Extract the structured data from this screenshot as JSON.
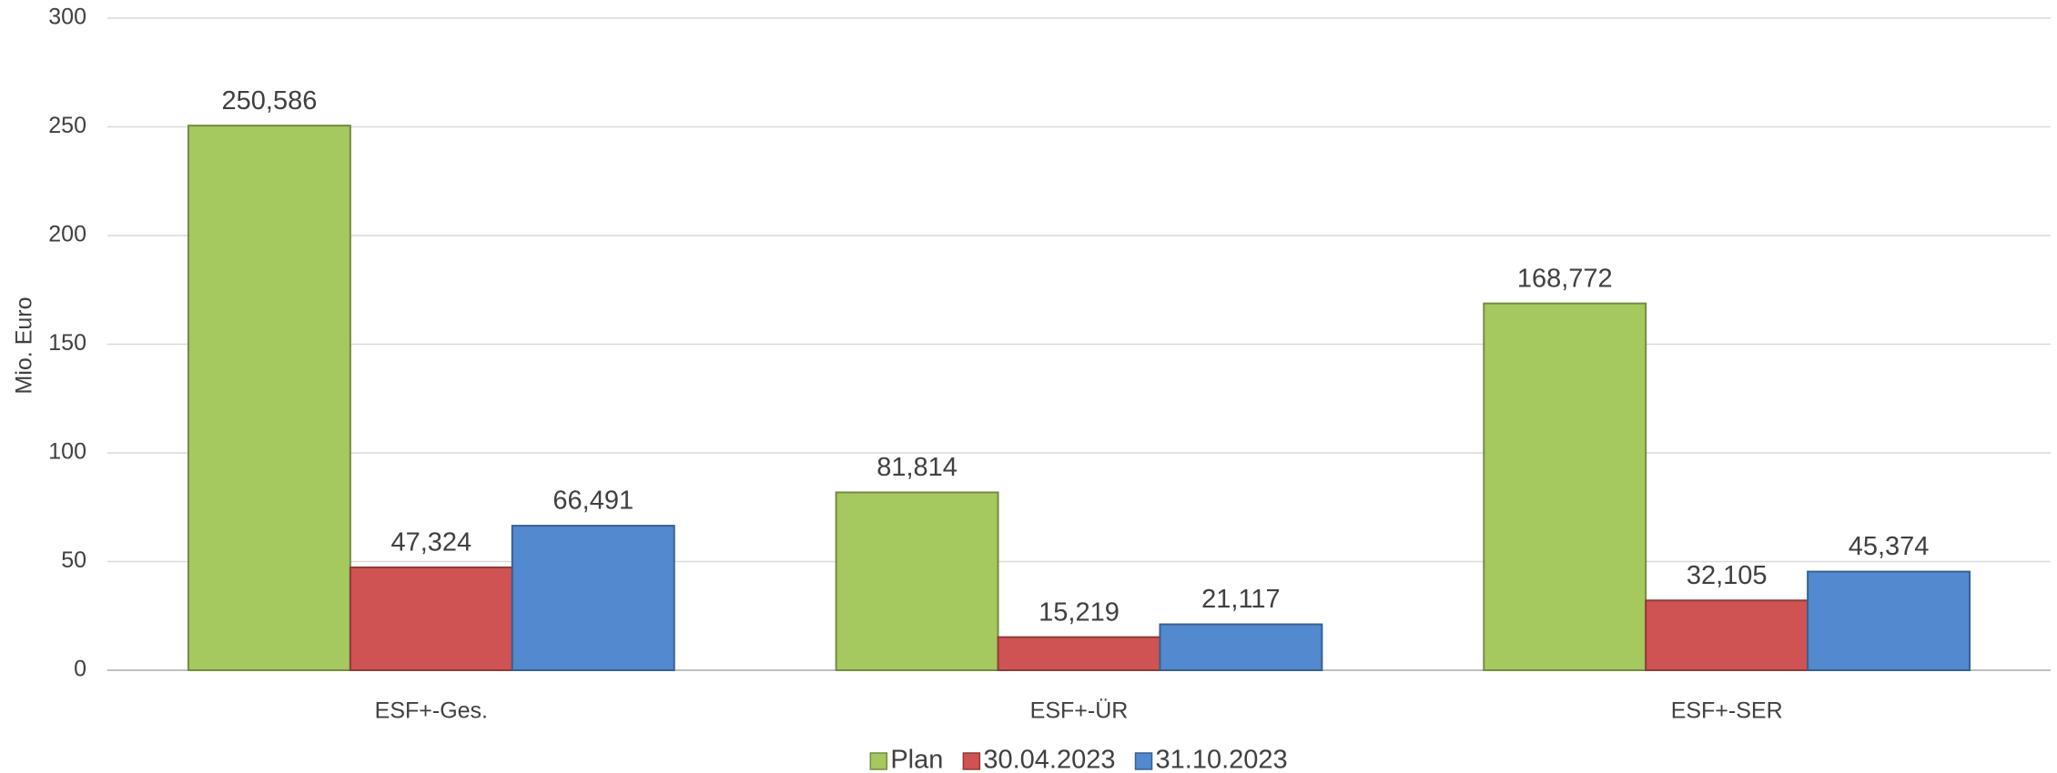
{
  "chart_data": {
    "type": "bar",
    "y_axis_label": "Mio. Euro",
    "categories": [
      "ESF+-Ges.",
      "ESF+-ÜR",
      "ESF+-SER"
    ],
    "series": [
      {
        "name": "Plan",
        "color": "#a5c85f",
        "values": [
          250.586,
          81.814,
          168.772
        ],
        "value_labels": [
          "250,586",
          "81,814",
          "168,772"
        ]
      },
      {
        "name": "30.04.2023",
        "color": "#cf5352",
        "values": [
          47.324,
          15.219,
          32.105
        ],
        "value_labels": [
          "47,324",
          "15,219",
          "32,105"
        ]
      },
      {
        "name": "31.10.2023",
        "color": "#5289cf",
        "values": [
          66.491,
          21.117,
          45.374
        ],
        "value_labels": [
          "66,491",
          "21,117",
          "45,374"
        ]
      }
    ],
    "ylim": [
      0,
      300
    ],
    "yticks": [
      0,
      50,
      100,
      150,
      200,
      250,
      300
    ],
    "grid": true,
    "legend": "bottom"
  }
}
